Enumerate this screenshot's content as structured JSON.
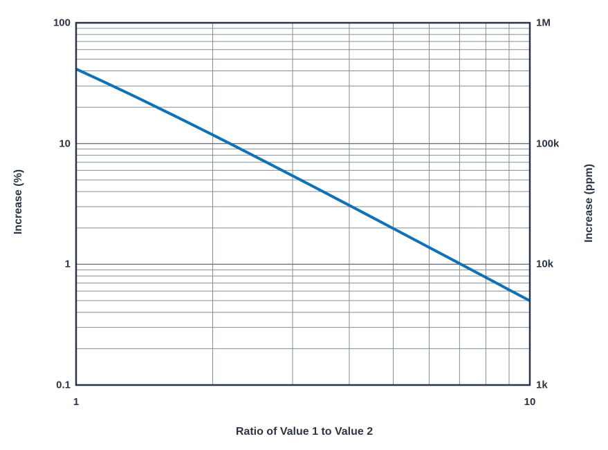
{
  "chart_data": {
    "type": "line",
    "title": "",
    "xlabel": "Ratio of Value 1 to Value 2",
    "ylabel_left": "Increase (%)",
    "ylabel_right": "Increase (ppm)",
    "x_scale": "log",
    "y_scale": "log",
    "xlim": [
      1,
      10
    ],
    "ylim_left": [
      0.1,
      100
    ],
    "ylim_right": [
      "1k",
      "1M"
    ],
    "grid": true,
    "legend_position": "none",
    "x_ticks": [
      {
        "label": "1",
        "value": 1
      },
      {
        "label": "10",
        "value": 10
      }
    ],
    "y_ticks_left": [
      {
        "label": "100",
        "value": 100
      },
      {
        "label": "10",
        "value": 10
      },
      {
        "label": "1",
        "value": 1
      },
      {
        "label": "0.1",
        "value": 0.1
      }
    ],
    "y_ticks_right": [
      {
        "label": "1M",
        "value": 100
      },
      {
        "label": "100k",
        "value": 10
      },
      {
        "label": "10k",
        "value": 1
      },
      {
        "label": "1k",
        "value": 0.1
      }
    ],
    "x_minor_gridlines": [
      2,
      3,
      4,
      5,
      6,
      7,
      8,
      9
    ],
    "y_major_gridlines": [
      10,
      1
    ],
    "y_minor_gridlines": [
      90,
      80,
      70,
      60,
      50,
      40,
      30,
      20,
      9,
      8,
      7,
      6,
      5,
      4,
      3,
      2,
      0.9,
      0.8,
      0.7,
      0.6,
      0.5,
      0.4,
      0.3,
      0.2
    ],
    "series": [
      {
        "name": "Increase",
        "points": [
          [
            1.0,
            41.421
          ],
          [
            1.1,
            35.146
          ],
          [
            1.2,
            30.171
          ],
          [
            1.3,
            26.163
          ],
          [
            1.4,
            22.891
          ],
          [
            1.5,
            20.185
          ],
          [
            1.6,
            17.925
          ],
          [
            1.7,
            16.018
          ],
          [
            1.8,
            14.396
          ],
          [
            1.9,
            13.005
          ],
          [
            2.0,
            11.803
          ],
          [
            2.2,
            9.846
          ],
          [
            2.4,
            8.333
          ],
          [
            2.6,
            7.142
          ],
          [
            2.8,
            6.186
          ],
          [
            3.0,
            5.409
          ],
          [
            3.5,
            4.002
          ],
          [
            4.0,
            3.078
          ],
          [
            4.5,
            2.44
          ],
          [
            5.0,
            1.98
          ],
          [
            5.5,
            1.639
          ],
          [
            6.0,
            1.379
          ],
          [
            6.5,
            1.176
          ],
          [
            7.0,
            1.015
          ],
          [
            7.5,
            0.885
          ],
          [
            8.0,
            0.778
          ],
          [
            8.5,
            0.69
          ],
          [
            9.0,
            0.615
          ],
          [
            9.5,
            0.552
          ],
          [
            10.0,
            0.499
          ]
        ]
      }
    ]
  },
  "colors": {
    "line": "#0e72b8",
    "grid_minor": "#818b95",
    "grid_major": "#6c7682",
    "axis_frame": "#2b3440",
    "text": "#2b3442",
    "background": "#ffffff"
  }
}
